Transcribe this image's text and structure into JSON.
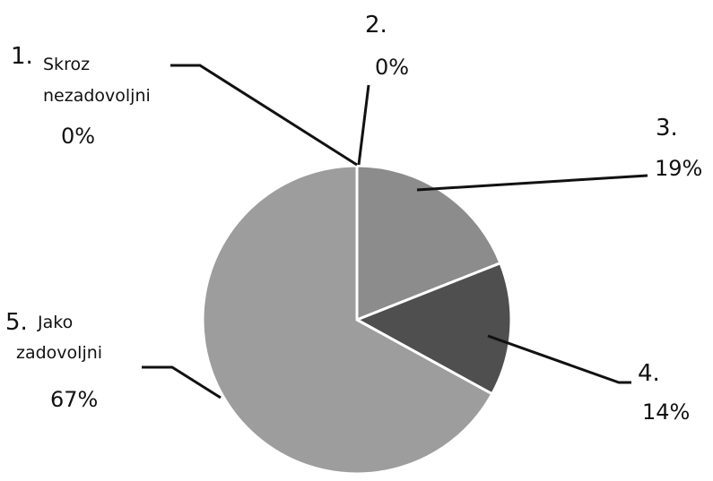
{
  "chart_data": {
    "type": "pie",
    "title": "",
    "categories": [
      "1. Skroz nezadovoljni",
      "2.",
      "3.",
      "4.",
      "5. Jako zadovoljni"
    ],
    "values": [
      0,
      0,
      19,
      14,
      67
    ],
    "unit": "%",
    "colors": [
      "#9a9a9a",
      "#9a9a9a",
      "#8c8c8c",
      "#4f4f4f",
      "#9d9d9d"
    ],
    "labels": [
      {
        "num": "1.",
        "text": "Skroz",
        "text2": "nezadovoljni",
        "pct": "0%"
      },
      {
        "num": "2.",
        "text": "",
        "text2": "",
        "pct": "0%"
      },
      {
        "num": "3.",
        "text": "",
        "text2": "",
        "pct": "19%"
      },
      {
        "num": "4.",
        "text": "",
        "text2": "",
        "pct": "14%"
      },
      {
        "num": "5.",
        "text": "Jako",
        "text2": "zadovoljni",
        "pct": "67%"
      }
    ],
    "legend": "none"
  }
}
